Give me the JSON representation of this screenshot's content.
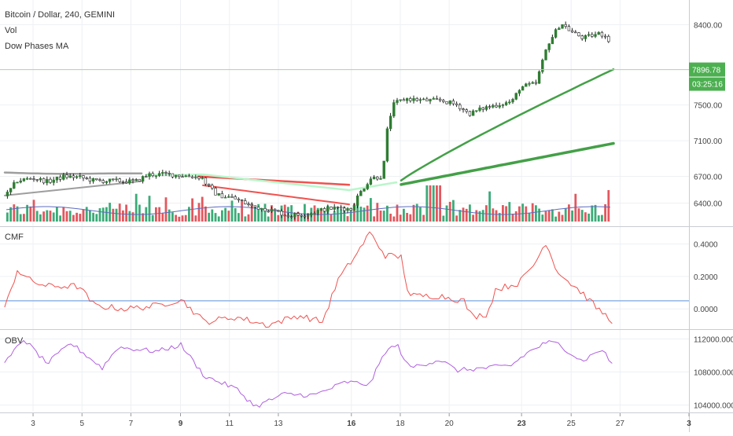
{
  "header": {
    "line1": "Bitcoin / Dollar, 240, GEMINI",
    "line2": "Vol",
    "line3": "Dow Phases MA"
  },
  "panes": {
    "cmf_label": "CMF",
    "obv_label": "OBV"
  },
  "price_tags": {
    "last_price": "7896.78",
    "countdown": "03:25:16"
  },
  "colors": {
    "up": "#26a269",
    "down": "#e0454d",
    "bull_candle": "#2e7d32",
    "ma_green": "#43a047",
    "ma_red": "#ef5350",
    "ma_gray": "#9e9e9e",
    "ma_light_green": "#b9f6ca",
    "cmf_line": "#ef5350",
    "cmf_zero": "#90b4e6",
    "obv_line": "#b05fe0",
    "vol_ma": "#5c6bc0",
    "grid": "#eef0f3",
    "tag_bg": "#4caf50"
  },
  "chart_data": [
    {
      "type": "candlestick",
      "title": "Bitcoin / Dollar, 240, GEMINI",
      "y_ticks": [
        "8400.00",
        "7500.00",
        "7100.00",
        "6700.00",
        "6400.00"
      ],
      "ylim": [
        6150,
        8650
      ],
      "last_price": 7896.78,
      "series": [
        {
          "name": "Vol",
          "kind": "volume"
        },
        {
          "name": "Dow Phases MA",
          "kind": "moving-averages"
        }
      ]
    },
    {
      "type": "line",
      "title": "CMF",
      "y_ticks": [
        "0.4000",
        "0.2000",
        "0.0000"
      ],
      "ylim": [
        -0.12,
        0.5
      ]
    },
    {
      "type": "line",
      "title": "OBV",
      "y_ticks": [
        "112000.0000",
        "108000.0000",
        "104000.0000"
      ],
      "ylim": [
        103200,
        113000
      ]
    }
  ],
  "x_axis": {
    "ticks": [
      {
        "label": "3",
        "bold": false,
        "pos": 0.048
      },
      {
        "label": "5",
        "bold": false,
        "pos": 0.119
      },
      {
        "label": "7",
        "bold": false,
        "pos": 0.19
      },
      {
        "label": "9",
        "bold": true,
        "pos": 0.262
      },
      {
        "label": "11",
        "bold": false,
        "pos": 0.333
      },
      {
        "label": "13",
        "bold": false,
        "pos": 0.404
      },
      {
        "label": "16",
        "bold": true,
        "pos": 0.51
      },
      {
        "label": "18",
        "bold": false,
        "pos": 0.581
      },
      {
        "label": "20",
        "bold": false,
        "pos": 0.652
      },
      {
        "label": "23",
        "bold": true,
        "pos": 0.757
      },
      {
        "label": "25",
        "bold": false,
        "pos": 0.829
      },
      {
        "label": "27",
        "bold": false,
        "pos": 0.9
      },
      {
        "label": "3",
        "bold": true,
        "pos": 1.0
      }
    ]
  }
}
